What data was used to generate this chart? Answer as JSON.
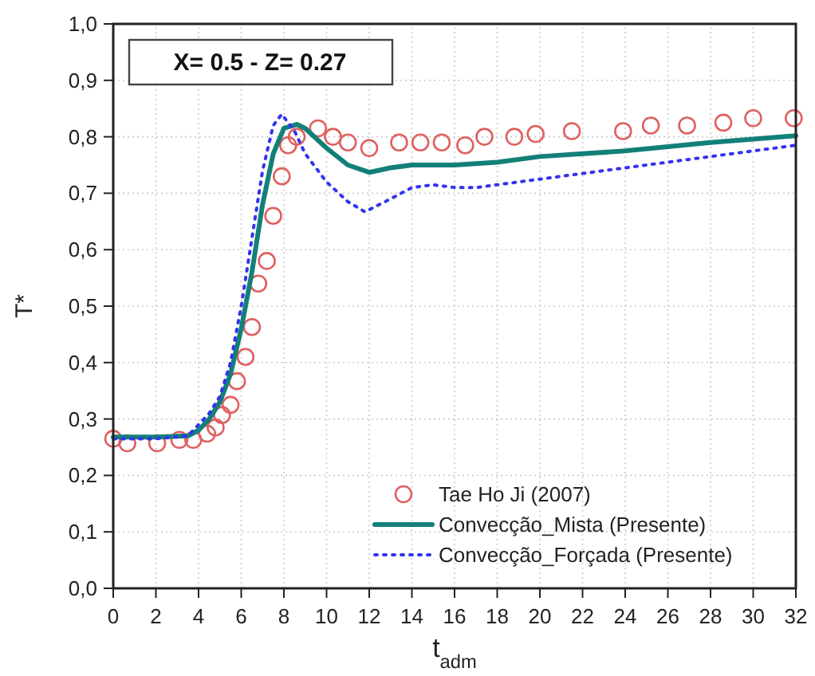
{
  "chart_data": {
    "type": "line",
    "xlabel": "t$_{adm}$",
    "ylabel": "T*",
    "annotations": [
      "X= 0.5 - Z= 0.27"
    ],
    "xlim": [
      0,
      32
    ],
    "xticks": [
      0,
      2,
      4,
      6,
      8,
      10,
      12,
      14,
      16,
      18,
      20,
      22,
      24,
      26,
      28,
      30,
      32
    ],
    "ylim": [
      0,
      1
    ],
    "yticks": [
      {
        "value": 0,
        "label": "0,0"
      },
      {
        "value": 0.1,
        "label": "0,1"
      },
      {
        "value": 0.2,
        "label": "0,2"
      },
      {
        "value": 0.3,
        "label": "0,3"
      },
      {
        "value": 0.4,
        "label": "0,4"
      },
      {
        "value": 0.5,
        "label": "0,5"
      },
      {
        "value": 0.6,
        "label": "0,6"
      },
      {
        "value": 0.7,
        "label": "0,7"
      },
      {
        "value": 0.8,
        "label": "0,8"
      },
      {
        "value": 0.9,
        "label": "0,9"
      },
      {
        "value": 1,
        "label": "1,0"
      }
    ],
    "grid": true,
    "legend": "bottom right",
    "series": [
      {
        "name": "Tae Ho Ji (2007)",
        "type": "scatter",
        "marker": "circle",
        "color": "#e06060",
        "x": [
          0,
          0.66,
          2.06,
          3.1,
          3.75,
          4.4,
          4.8,
          5.1,
          5.5,
          5.8,
          6.2,
          6.5,
          6.8,
          7.2,
          7.5,
          7.9,
          8.2,
          8.6,
          9.6,
          10.3,
          11,
          12,
          13.4,
          14.4,
          15.4,
          16.5,
          17.4,
          18.8,
          19.8,
          21.5,
          23.9,
          25.2,
          26.9,
          28.6,
          30,
          31.9
        ],
        "values": [
          0.265,
          0.257,
          0.257,
          0.263,
          0.263,
          0.274,
          0.285,
          0.307,
          0.325,
          0.367,
          0.41,
          0.463,
          0.54,
          0.58,
          0.66,
          0.73,
          0.785,
          0.8,
          0.815,
          0.8,
          0.79,
          0.78,
          0.79,
          0.79,
          0.79,
          0.785,
          0.8,
          0.8,
          0.805,
          0.81,
          0.81,
          0.82,
          0.82,
          0.825,
          0.833,
          0.833
        ]
      },
      {
        "name": "Convecção_Mista (Presente)",
        "type": "line",
        "marker": "none",
        "line_style": "solid",
        "color": "#138078",
        "x": [
          0,
          2,
          3.5,
          4,
          4.5,
          5,
          5.5,
          6,
          6.5,
          7,
          7.5,
          8,
          8.6,
          9,
          10,
          11,
          12,
          13,
          14,
          16,
          18,
          20,
          24,
          28,
          32
        ],
        "values": [
          0.268,
          0.268,
          0.27,
          0.28,
          0.3,
          0.33,
          0.38,
          0.46,
          0.56,
          0.68,
          0.77,
          0.815,
          0.822,
          0.815,
          0.78,
          0.75,
          0.737,
          0.745,
          0.75,
          0.75,
          0.755,
          0.765,
          0.775,
          0.79,
          0.802
        ]
      },
      {
        "name": "Convecção_Forçada (Presente)",
        "type": "line",
        "marker": "none",
        "line_style": "dotted",
        "color": "#3333ee",
        "x": [
          0,
          2,
          3.5,
          4,
          4.5,
          5,
          5.5,
          6,
          6.5,
          7,
          7.5,
          7.9,
          8.5,
          9,
          10,
          11,
          11.8,
          13,
          14,
          15,
          16,
          17,
          18,
          20,
          24,
          28,
          32
        ],
        "values": [
          0.265,
          0.265,
          0.27,
          0.29,
          0.31,
          0.34,
          0.4,
          0.5,
          0.62,
          0.74,
          0.82,
          0.84,
          0.81,
          0.77,
          0.72,
          0.685,
          0.667,
          0.69,
          0.71,
          0.715,
          0.71,
          0.71,
          0.715,
          0.725,
          0.745,
          0.765,
          0.785
        ]
      }
    ]
  }
}
